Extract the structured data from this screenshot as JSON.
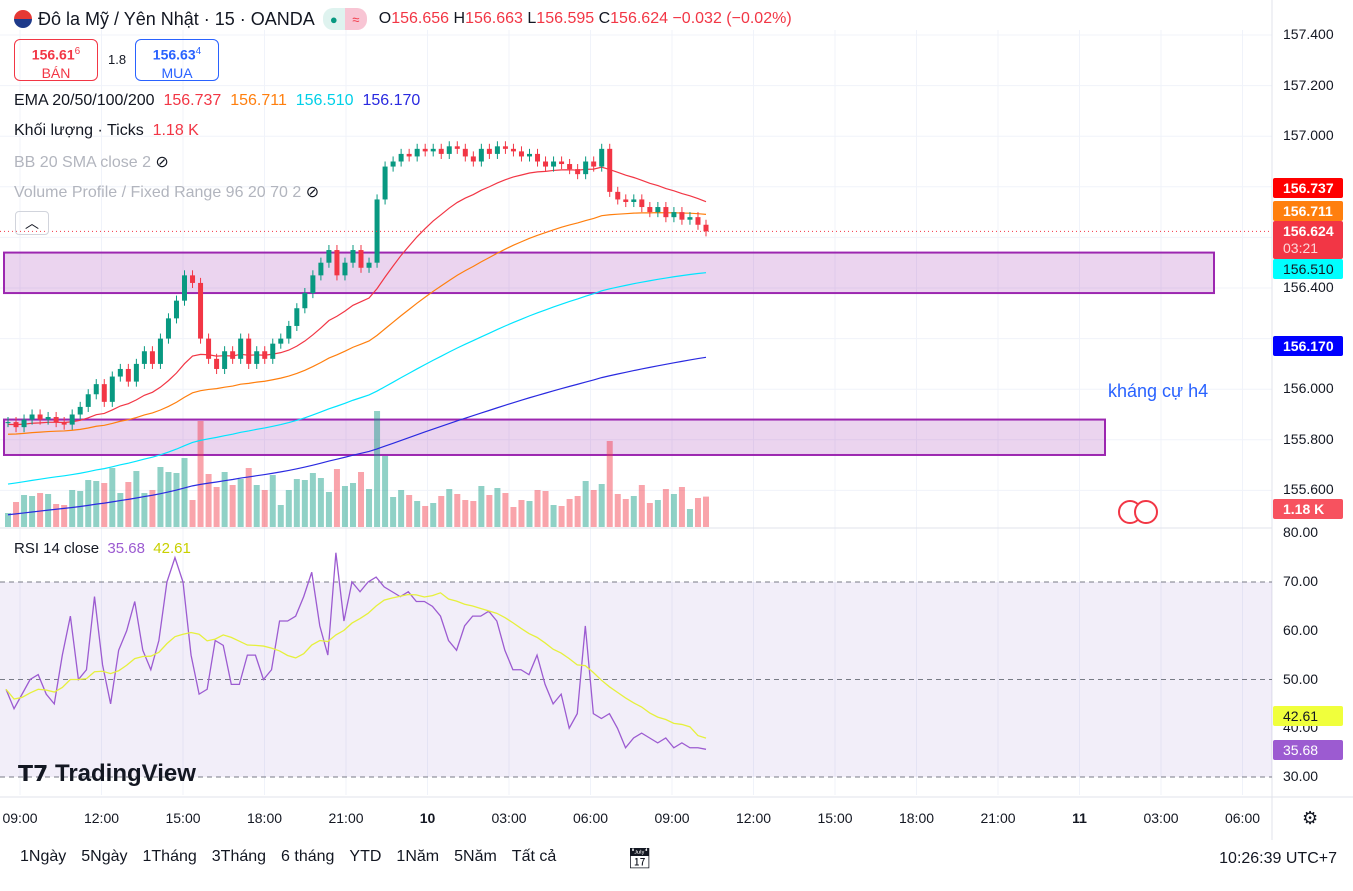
{
  "header": {
    "title": "Đô la Mỹ / Yên Nhật · 15 · OANDA",
    "o_label": "O",
    "o": "156.656",
    "h_label": "H",
    "h": "156.663",
    "l_label": "L",
    "l": "156.595",
    "c_label": "C",
    "c": "156.624",
    "change": "−0.032 (−0.02%)"
  },
  "trade": {
    "sell_price": "156.61",
    "sell_sup": "6",
    "sell_label": "BÁN",
    "spread": "1.8",
    "buy_price": "156.63",
    "buy_sup": "4",
    "buy_label": "MUA"
  },
  "legends": {
    "ema_label": "EMA 20/50/100/200",
    "ema20": "156.737",
    "ema50": "156.711",
    "ema100": "156.510",
    "ema200": "156.170",
    "vol_label": "Khối lượng · Ticks",
    "vol_value": "1.18 K",
    "bb": "BB 20 SMA close 2",
    "vp": "Volume Profile / Fixed Range 96 20 70 2",
    "rsi_label": "RSI 14 close",
    "rsi": "35.68",
    "rsi_ma": "42.61"
  },
  "annotation": "kháng cự h4",
  "price_axis": [
    "157.400",
    "157.200",
    "157.000",
    "156.400",
    "156.000",
    "155.800",
    "155.600"
  ],
  "price_tags": {
    "ema20": "156.737",
    "ema50": "156.711",
    "last": "156.624",
    "countdown": "03:21",
    "ema100": "156.510",
    "ema200": "156.170",
    "volume": "1.18 K"
  },
  "rsi_axis": [
    "80.00",
    "70.00",
    "60.00",
    "50.00",
    "40.00",
    "30.00"
  ],
  "rsi_tags": {
    "ma": "42.61",
    "rsi": "35.68"
  },
  "time_axis": [
    "09:00",
    "12:00",
    "15:00",
    "18:00",
    "21:00",
    "10",
    "03:00",
    "06:00",
    "09:00",
    "12:00",
    "15:00",
    "18:00",
    "21:00",
    "11",
    "03:00",
    "06:00"
  ],
  "bottom": {
    "ranges": [
      "1Ngày",
      "5Ngày",
      "1Tháng",
      "3Tháng",
      "6 tháng",
      "YTD",
      "1Năm",
      "5Năm",
      "Tất cả"
    ],
    "clock": "10:26:39 UTC+7"
  },
  "logo": "TradingView",
  "colors": {
    "up": "#089981",
    "down": "#f23645",
    "ema20": "#f23645",
    "ema50": "#ff7f0e",
    "ema100": "#00e5ff",
    "ema200": "#2a2ae0",
    "rsi": "#9c5bd1",
    "rsi_ma": "#e6f03c",
    "zone": "#9c27b0"
  },
  "chart_data": {
    "type": "candlestick",
    "zones": [
      [
        156.38,
        156.54
      ],
      [
        155.74,
        155.88
      ]
    ],
    "closes": [
      155.87,
      155.85,
      155.88,
      155.9,
      155.88,
      155.89,
      155.87,
      155.86,
      155.9,
      155.93,
      155.98,
      156.02,
      155.95,
      156.05,
      156.08,
      156.03,
      156.1,
      156.15,
      156.1,
      156.2,
      156.28,
      156.35,
      156.45,
      156.42,
      156.2,
      156.12,
      156.08,
      156.15,
      156.12,
      156.2,
      156.1,
      156.15,
      156.12,
      156.18,
      156.2,
      156.25,
      156.32,
      156.38,
      156.45,
      156.5,
      156.55,
      156.45,
      156.5,
      156.55,
      156.48,
      156.5,
      156.75,
      156.88,
      156.9,
      156.93,
      156.92,
      156.95,
      156.94,
      156.95,
      156.93,
      156.96,
      156.95,
      156.92,
      156.9,
      156.95,
      156.93,
      156.96,
      156.95,
      156.94,
      156.92,
      156.93,
      156.9,
      156.88,
      156.9,
      156.89,
      156.87,
      156.85,
      156.9,
      156.88,
      156.95,
      156.78,
      156.75,
      156.74,
      156.75,
      156.72,
      156.7,
      156.72,
      156.68,
      156.7,
      156.67,
      156.68,
      156.65,
      156.624
    ],
    "ema_seed": {
      "ema20": 155.86,
      "ema50": 155.82,
      "ema100": 155.62,
      "ema200": 155.5
    },
    "rsi": [
      48,
      44,
      47,
      50,
      51,
      47,
      45,
      55,
      63,
      50,
      52,
      67,
      53,
      45,
      56,
      60,
      66,
      56,
      52,
      58,
      70,
      75,
      70,
      55,
      47,
      48,
      58,
      57,
      49,
      49,
      55,
      55,
      50,
      52,
      62,
      62,
      63,
      67,
      72,
      61,
      55,
      76,
      62,
      70,
      68,
      70,
      71,
      69,
      68,
      67,
      68,
      66,
      66,
      65,
      63,
      58,
      56,
      61,
      63,
      63,
      64,
      62,
      56,
      52,
      52,
      51,
      55,
      49,
      45,
      47,
      40,
      43,
      61,
      43,
      42,
      43,
      40,
      36,
      38,
      39,
      38,
      37,
      38,
      36,
      37,
      36,
      36,
      35.68
    ]
  }
}
